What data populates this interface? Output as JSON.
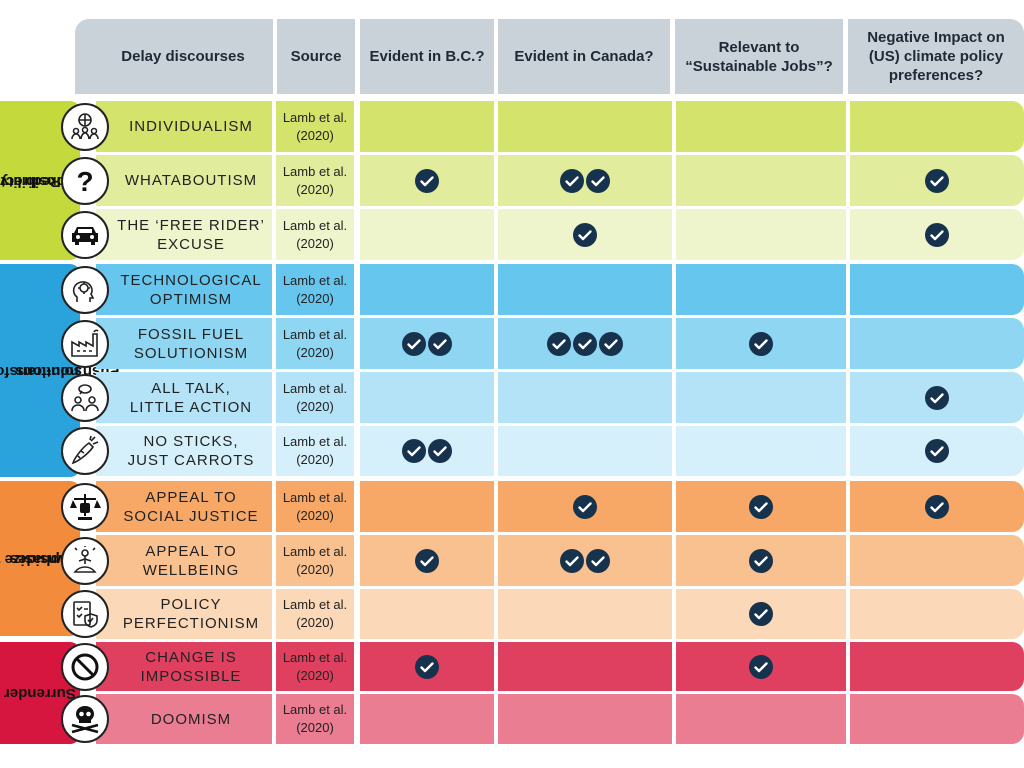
{
  "headers": {
    "delay": "Delay discourses",
    "source": "Source",
    "bc": "Evident in B.C.?",
    "canada": "Evident in Canada?",
    "sj1": "Relevant to",
    "sj2": "“Sustainable Jobs”?",
    "neg1": "Negative Impact on",
    "neg2": "(US) climate policy",
    "neg3": "preferences?"
  },
  "categories": {
    "redirect1": "Redirect",
    "redirect2": "responsibility",
    "push1": "Push non-transformative",
    "push2": "solutions",
    "emph1": "Emphasize the",
    "emph2": "downsides",
    "surrender": "Surrender"
  },
  "colors": {
    "header": "#c9d1d9",
    "check": "#17324d",
    "redirect_cat": "#c4d93c",
    "push_cat": "#2aa3dc",
    "emph_cat": "#f28c3c",
    "surrender_cat": "#d6163f"
  },
  "rows": [
    {
      "l1": "INDIVIDUALISM",
      "l2": "",
      "s1": "Lamb et al.",
      "s2": "(2020)",
      "icon": "people-globe-icon",
      "bc": 0,
      "canada": 0,
      "sj": 0,
      "neg": 0,
      "color": "#d4e36b"
    },
    {
      "l1": "WHATABOUTISM",
      "l2": "",
      "s1": "Lamb et al.",
      "s2": "(2020)",
      "icon": "question-mark-icon",
      "bc": 1,
      "canada": 2,
      "sj": 0,
      "neg": 1,
      "color": "#e2ec9d"
    },
    {
      "l1": "THE ‘FREE RIDER’",
      "l2": "EXCUSE",
      "s1": "Lamb et al.",
      "s2": "(2020)",
      "icon": "car-icon",
      "bc": 0,
      "canada": 1,
      "sj": 0,
      "neg": 1,
      "color": "#eef4cc"
    },
    {
      "l1": "TECHNOLOGICAL",
      "l2": "OPTIMISM",
      "s1": "Lamb et al.",
      "s2": "(2020)",
      "icon": "gear-head-icon",
      "bc": 0,
      "canada": 0,
      "sj": 0,
      "neg": 0,
      "color": "#66c6ee"
    },
    {
      "l1": "FOSSIL FUEL",
      "l2": "SOLUTIONISM",
      "s1": "Lamb et al.",
      "s2": "(2020)",
      "icon": "factory-icon",
      "bc": 2,
      "canada": 3,
      "sj": 1,
      "neg": 0,
      "color": "#8fd6f3"
    },
    {
      "l1": "ALL TALK,",
      "l2": "LITTLE ACTION",
      "s1": "Lamb et al.",
      "s2": "(2020)",
      "icon": "speech-people-icon",
      "bc": 0,
      "canada": 0,
      "sj": 0,
      "neg": 1,
      "color": "#b4e3f7"
    },
    {
      "l1": "NO STICKS,",
      "l2": "JUST CARROTS",
      "s1": "Lamb et al.",
      "s2": "(2020)",
      "icon": "carrot-icon",
      "bc": 2,
      "canada": 0,
      "sj": 0,
      "neg": 1,
      "color": "#d6f0fb"
    },
    {
      "l1": "APPEAL TO",
      "l2": "SOCIAL JUSTICE",
      "s1": "Lamb et al.",
      "s2": "(2020)",
      "icon": "justice-fist-icon",
      "bc": 0,
      "canada": 1,
      "sj": 1,
      "neg": 1,
      "color": "#f7a866"
    },
    {
      "l1": "APPEAL TO",
      "l2": "WELLBEING",
      "s1": "Lamb et al.",
      "s2": "(2020)",
      "icon": "meditation-icon",
      "bc": 1,
      "canada": 2,
      "sj": 1,
      "neg": 0,
      "color": "#f9c18f"
    },
    {
      "l1": "POLICY",
      "l2": "PERFECTIONISM",
      "s1": "Lamb et al.",
      "s2": "(2020)",
      "icon": "checklist-shield-icon",
      "bc": 0,
      "canada": 0,
      "sj": 1,
      "neg": 0,
      "color": "#fbd9b8"
    },
    {
      "l1": "CHANGE IS",
      "l2": "IMPOSSIBLE",
      "s1": "Lamb et al.",
      "s2": "(2020)",
      "icon": "prohibited-icon",
      "bc": 1,
      "canada": 0,
      "sj": 1,
      "neg": 0,
      "color": "#e0405f"
    },
    {
      "l1": "DOOMISM",
      "l2": "",
      "s1": "Lamb et al.",
      "s2": "(2020)",
      "icon": "skull-crossbones-icon",
      "bc": 0,
      "canada": 0,
      "sj": 0,
      "neg": 0,
      "color": "#ea7d92"
    }
  ]
}
